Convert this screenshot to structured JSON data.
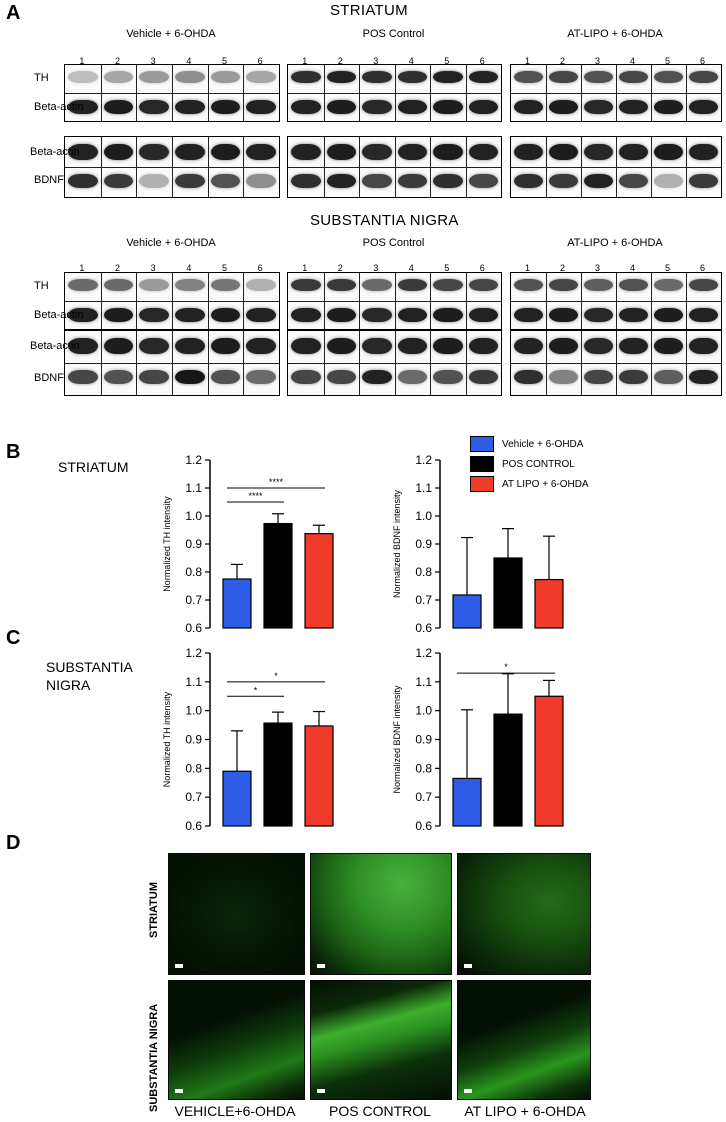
{
  "panels": {
    "a": "A",
    "b": "B",
    "c": "C",
    "d": "D"
  },
  "section_a": {
    "striatum_title": "STRIATUM",
    "nigra_title": "SUBSTANTIA NIGRA",
    "groups": [
      "Vehicle + 6-OHDA",
      "POS Control",
      "AT-LIPO + 6-OHDA"
    ],
    "lanes": [
      "1",
      "2",
      "3",
      "4",
      "5",
      "6"
    ],
    "labels": {
      "th": "TH",
      "beta": "Beta-actin",
      "bdnf": "BDNF"
    }
  },
  "legend": {
    "items": [
      {
        "label": "Vehicle + 6-OHDA",
        "color": "#2f5ce6"
      },
      {
        "label": "POS CONTROL",
        "color": "#000000"
      },
      {
        "label": "AT LIPO + 6-OHDA",
        "color": "#f03a2a"
      }
    ]
  },
  "section_b": {
    "title": "STRIATUM"
  },
  "section_c": {
    "title_line1": "SUBSTANTIA",
    "title_line2": "NIGRA"
  },
  "chart_data": [
    {
      "type": "bar",
      "id": "striatum-th",
      "ylabel": "Normalized TH intensity",
      "ylim": [
        0.6,
        1.2
      ],
      "yticks": [
        "0.6",
        "0.7",
        "0.8",
        "0.9",
        "1.0",
        "1.1",
        "1.2"
      ],
      "values": [
        0.775,
        0.973,
        0.937
      ],
      "errors": [
        0.052,
        0.035,
        0.03
      ],
      "significance": [
        {
          "from": 0,
          "to": 1,
          "label": "****"
        },
        {
          "from": 0,
          "to": 2,
          "label": "****"
        }
      ]
    },
    {
      "type": "bar",
      "id": "striatum-bdnf",
      "ylabel": "Normalized BDNF intensity",
      "ylim": [
        0.6,
        1.2
      ],
      "yticks": [
        "0.6",
        "0.7",
        "0.8",
        "0.9",
        "1.0",
        "1.1",
        "1.2"
      ],
      "values": [
        0.718,
        0.85,
        0.773
      ],
      "errors": [
        0.205,
        0.105,
        0.155
      ],
      "significance": []
    },
    {
      "type": "bar",
      "id": "nigra-th",
      "ylabel": "Normalized TH intensity",
      "ylim": [
        0.6,
        1.2
      ],
      "yticks": [
        "0.6",
        "0.7",
        "0.8",
        "0.9",
        "1.0",
        "1.1",
        "1.2"
      ],
      "values": [
        0.79,
        0.957,
        0.947
      ],
      "errors": [
        0.14,
        0.038,
        0.05
      ],
      "significance": [
        {
          "from": 0,
          "to": 1,
          "label": "*"
        },
        {
          "from": 0,
          "to": 2,
          "label": "*"
        }
      ]
    },
    {
      "type": "bar",
      "id": "nigra-bdnf",
      "ylabel": "Normalized BDNF intensity",
      "ylim": [
        0.6,
        1.2
      ],
      "yticks": [
        "0.6",
        "0.7",
        "0.8",
        "0.9",
        "1.0",
        "1.1",
        "1.2"
      ],
      "values": [
        0.765,
        0.988,
        1.05
      ],
      "errors": [
        0.238,
        0.14,
        0.055
      ],
      "significance": [
        {
          "from": 0,
          "to": 2,
          "label": "*"
        }
      ]
    }
  ],
  "section_d": {
    "row_labels": [
      "STRIATUM",
      "SUBSTANTIA NIGRA"
    ],
    "conditions": [
      "VEHICLE+6-OHDA",
      "POS CONTROL",
      "AT LIPO + 6-OHDA"
    ]
  }
}
